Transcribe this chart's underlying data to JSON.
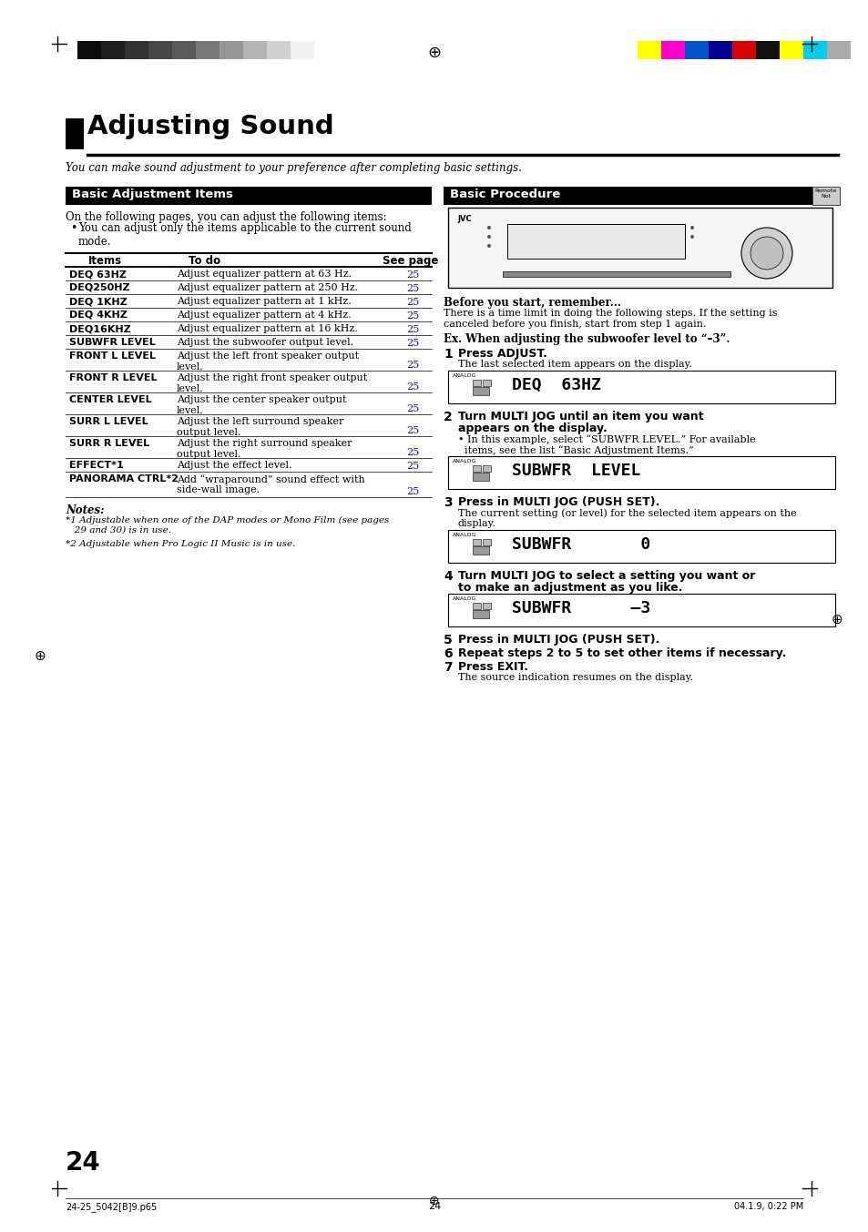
{
  "title": "Adjusting Sound",
  "subtitle": "You can make sound adjustment to your preference after completing basic settings.",
  "page_number": "24",
  "left_section_title": "Basic Adjustment Items",
  "right_section_title": "Basic Procedure",
  "intro_text": "On the following pages, you can adjust the following items:",
  "bullet_text": "You can adjust only the items applicable to the current sound\nmode.",
  "table_headers": [
    "Items",
    "To do",
    "See page"
  ],
  "table_rows": [
    [
      "DEQ 63HZ",
      "Adjust equalizer pattern at 63 Hz.",
      "25"
    ],
    [
      "DEQ250HZ",
      "Adjust equalizer pattern at 250 Hz.",
      "25"
    ],
    [
      "DEQ 1KHZ",
      "Adjust equalizer pattern at 1 kHz.",
      "25"
    ],
    [
      "DEQ 4KHZ",
      "Adjust equalizer pattern at 4 kHz.",
      "25"
    ],
    [
      "DEQ16KHZ",
      "Adjust equalizer pattern at 16 kHz.",
      "25"
    ],
    [
      "SUBWFR LEVEL",
      "Adjust the subwoofer output level.",
      "25"
    ],
    [
      "FRONT L LEVEL",
      "Adjust the left front speaker output\nlevel.",
      "25"
    ],
    [
      "FRONT R LEVEL",
      "Adjust the right front speaker output\nlevel.",
      "25"
    ],
    [
      "CENTER LEVEL",
      "Adjust the center speaker output\nlevel.",
      "25"
    ],
    [
      "SURR L LEVEL",
      "Adjust the left surround speaker\noutput level.",
      "25"
    ],
    [
      "SURR R LEVEL",
      "Adjust the right surround speaker\noutput level.",
      "25"
    ],
    [
      "EFFECT*1",
      "Adjust the effect level.",
      "25"
    ],
    [
      "PANORAMA CTRL*2",
      "Add “wraparound” sound effect with\nside-wall image.",
      "25"
    ]
  ],
  "notes_title": "Notes:",
  "notes": [
    "*1 Adjustable when one of the DAP modes or Mono Film (see pages\n   29 and 30) is in use.",
    "*2 Adjustable when Pro Logic II Music is in use."
  ],
  "before_start_title": "Before you start, remember...",
  "before_start_text": "There is a time limit in doing the following steps. If the setting is\ncanceled before you finish, start from step 1 again.",
  "ex_text": "Ex. When adjusting the subwoofer level to “–3”.",
  "steps": [
    {
      "num": "1",
      "title": "Press ADJUST.",
      "desc": "The last selected item appears on the display.",
      "display": "DEQ  63HZ"
    },
    {
      "num": "2",
      "title": "Turn MULTI JOG until an item you want\nappears on the display.",
      "desc": "• In this example, select “SUBWFR LEVEL.” For available\n  items, see the list “Basic Adjustment Items.”",
      "display": "SUBWFR  LEVEL"
    },
    {
      "num": "3",
      "title": "Press in MULTI JOG (PUSH SET).",
      "desc": "The current setting (or level) for the selected item appears on the\ndisplay.",
      "display": "SUBWFR       0"
    },
    {
      "num": "4",
      "title": "Turn MULTI JOG to select a setting you want or\nto make an adjustment as you like.",
      "desc": "",
      "display": "SUBWFR      –3"
    },
    {
      "num": "5",
      "title": "Press in MULTI JOG (PUSH SET).",
      "desc": "",
      "display": ""
    },
    {
      "num": "6",
      "title": "Repeat steps 2 to 5 to set other items if necessary.",
      "desc": "",
      "display": ""
    },
    {
      "num": "7",
      "title": "Press EXIT.",
      "desc": "The source indication resumes on the display.",
      "display": ""
    }
  ],
  "bg_color": "#ffffff",
  "blue": "#1a0dab",
  "grayscale_colors": [
    "#0d0d0d",
    "#1e1e1e",
    "#323232",
    "#464646",
    "#5a5a5a",
    "#787878",
    "#969696",
    "#b4b4b4",
    "#d2d2d2",
    "#f0f0f0"
  ],
  "color_bars": [
    "#ffff00",
    "#ff00cc",
    "#0055cc",
    "#000099",
    "#dd0000",
    "#111111",
    "#ffff00",
    "#00ccee",
    "#aaaaaa"
  ],
  "footer_left": "24-25_5042[B]9.p65",
  "footer_center": "24",
  "footer_right": "04.1.9, 0:22 PM"
}
